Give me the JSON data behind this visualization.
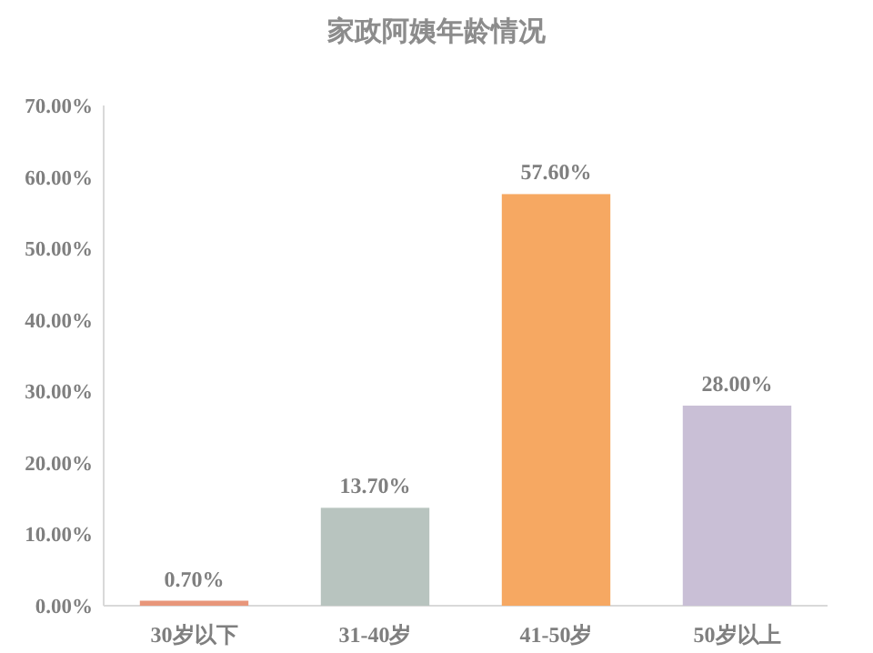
{
  "chart_data": {
    "type": "bar",
    "title": "家政阿姨年龄情况",
    "categories": [
      "30岁以下",
      "31-40岁",
      "41-50岁",
      "50岁以上"
    ],
    "values": [
      0.7,
      13.7,
      57.6,
      28.0
    ],
    "colors": [
      "#e8967a",
      "#b8c4bf",
      "#f6a862",
      "#c9bfd6"
    ],
    "value_labels": [
      "0.70%",
      "13.70%",
      "57.60%",
      "28.00%"
    ],
    "ylim": [
      0,
      70
    ],
    "yticks": [
      {
        "value": 0,
        "label": "0.00%"
      },
      {
        "value": 10,
        "label": "10.00%"
      },
      {
        "value": 20,
        "label": "20.00%"
      },
      {
        "value": 30,
        "label": "30.00%"
      },
      {
        "value": 40,
        "label": "40.00%"
      },
      {
        "value": 50,
        "label": "50.00%"
      },
      {
        "value": 60,
        "label": "60.00%"
      },
      {
        "value": 70,
        "label": "70.00%"
      }
    ],
    "grid": false
  }
}
